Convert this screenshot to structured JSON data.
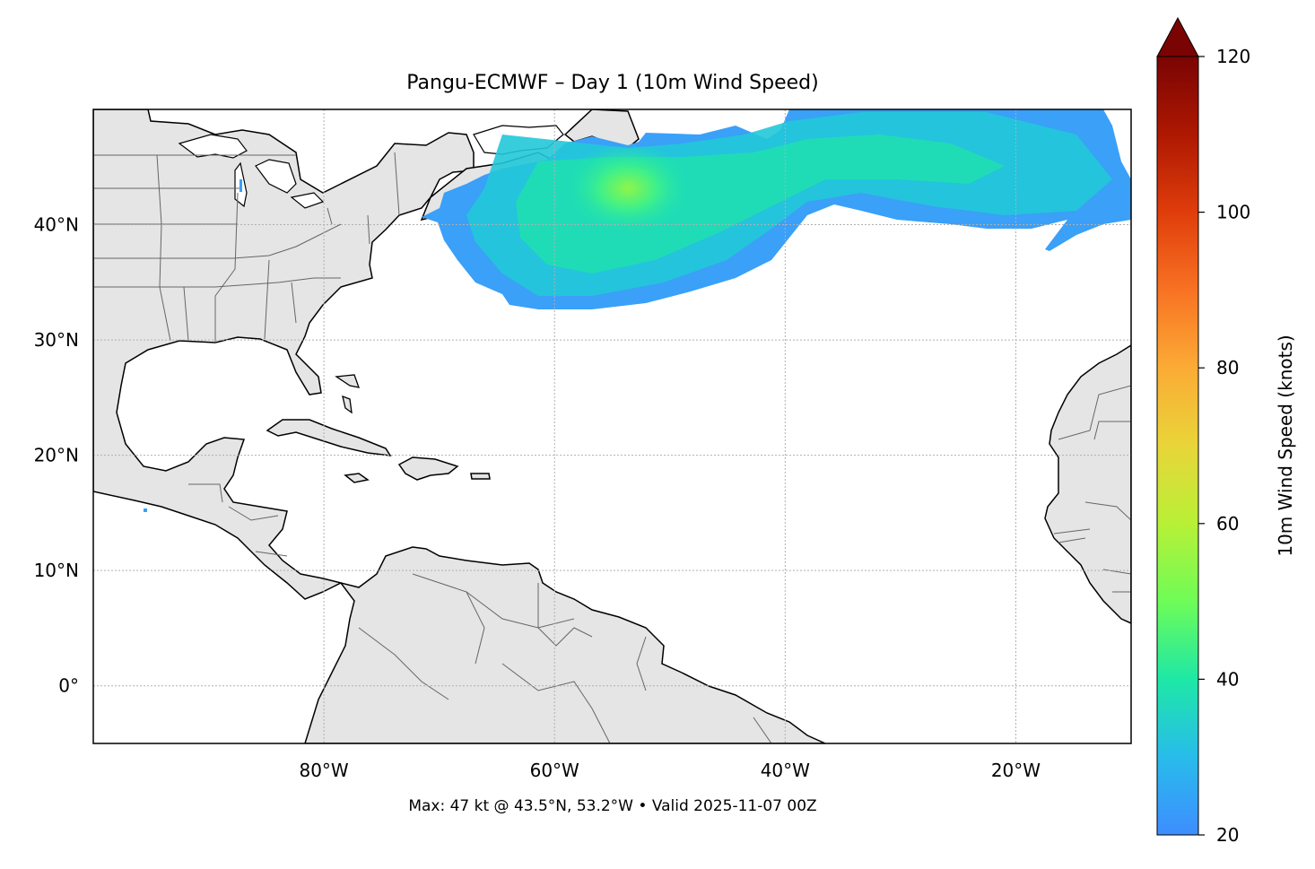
{
  "title": "Pangu-ECMWF – Day 1 (10m Wind Speed)",
  "footer": "Max: 47 kt @ 43.5°N, 53.2°W • Valid 2025-11-07 00Z",
  "map": {
    "lon_range": [
      -100,
      -10
    ],
    "lat_range": [
      -5,
      50
    ],
    "lat_ticks": [
      {
        "value": 40,
        "label": "40°N"
      },
      {
        "value": 30,
        "label": "30°N"
      },
      {
        "value": 20,
        "label": "20°N"
      },
      {
        "value": 10,
        "label": "10°N"
      },
      {
        "value": 0,
        "label": "0°"
      }
    ],
    "lon_ticks": [
      {
        "value": -80,
        "label": "80°W"
      },
      {
        "value": -60,
        "label": "60°W"
      },
      {
        "value": -40,
        "label": "40°W"
      },
      {
        "value": -20,
        "label": "20°W"
      }
    ],
    "gridlines": true,
    "land_color": "#e5e5e5",
    "coastline_color": "#000000",
    "border_color": "#666666"
  },
  "colorbar": {
    "label": "10m Wind Speed (knots)",
    "min": 20,
    "max": 120,
    "ticks": [
      20,
      40,
      60,
      80,
      100,
      120
    ],
    "extend": "max",
    "colormap": "turbo"
  },
  "max_point": {
    "speed_kt": 47,
    "lat": 43.5,
    "lon": -53.2
  }
}
